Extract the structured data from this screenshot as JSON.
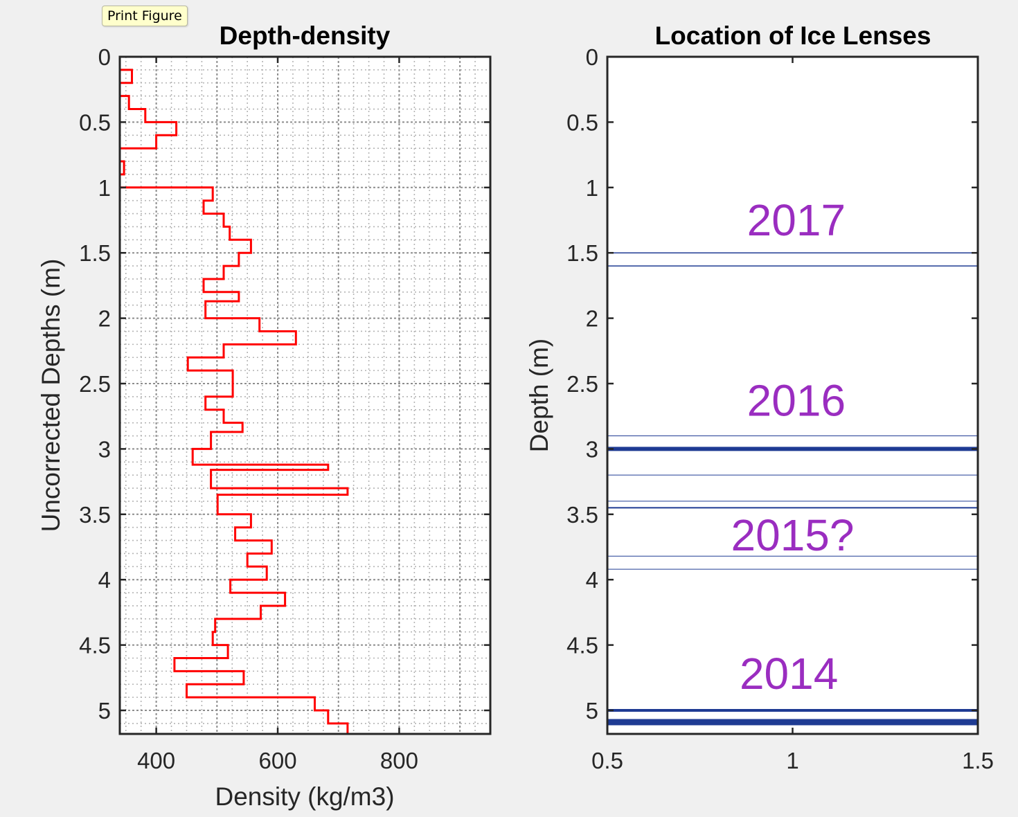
{
  "tooltip": "Print Figure",
  "chart_data": [
    {
      "type": "line",
      "title": "Depth-density",
      "xlabel": "Density (kg/m3)",
      "ylabel": "Uncorrected Depths (m)",
      "xlim": [
        340,
        950
      ],
      "ylim": [
        5.18,
        0
      ],
      "xticks": [
        "400",
        "600",
        "800"
      ],
      "xtick_values": [
        400,
        600,
        800
      ],
      "yticks": [
        "0",
        "0.5",
        "1",
        "1.5",
        "2",
        "2.5",
        "3",
        "3.5",
        "4",
        "4.5",
        "5"
      ],
      "ytick_values": [
        0,
        0.5,
        1,
        1.5,
        2,
        2.5,
        3,
        3.5,
        4,
        4.5,
        5
      ],
      "grid": true,
      "minor_grid": true,
      "color": "#ff0000",
      "style": "stairs",
      "series": [
        {
          "points": [
            [
              340,
              0.1
            ],
            [
              360,
              0.1
            ],
            [
              360,
              0.2
            ],
            [
              340,
              0.2
            ],
            [
              340,
              0.3
            ],
            [
              355,
              0.3
            ],
            [
              355,
              0.4
            ],
            [
              382,
              0.4
            ],
            [
              382,
              0.5
            ],
            [
              433,
              0.5
            ],
            [
              433,
              0.6
            ],
            [
              400,
              0.6
            ],
            [
              400,
              0.7
            ],
            [
              340,
              0.7
            ],
            [
              340,
              0.8
            ],
            [
              347,
              0.8
            ],
            [
              347,
              0.9
            ],
            [
              340,
              0.9
            ],
            [
              340,
              1.0
            ],
            [
              493,
              1.0
            ],
            [
              493,
              1.1
            ],
            [
              478,
              1.1
            ],
            [
              478,
              1.2
            ],
            [
              511,
              1.2
            ],
            [
              511,
              1.3
            ],
            [
              521,
              1.3
            ],
            [
              521,
              1.4
            ],
            [
              556,
              1.4
            ],
            [
              556,
              1.5
            ],
            [
              536,
              1.5
            ],
            [
              536,
              1.6
            ],
            [
              511,
              1.6
            ],
            [
              511,
              1.7
            ],
            [
              478,
              1.7
            ],
            [
              478,
              1.8
            ],
            [
              536,
              1.8
            ],
            [
              536,
              1.87
            ],
            [
              481,
              1.87
            ],
            [
              481,
              2.0
            ],
            [
              570,
              2.0
            ],
            [
              570,
              2.1
            ],
            [
              630,
              2.1
            ],
            [
              630,
              2.2
            ],
            [
              511,
              2.2
            ],
            [
              511,
              2.3
            ],
            [
              452,
              2.3
            ],
            [
              452,
              2.4
            ],
            [
              526,
              2.4
            ],
            [
              526,
              2.6
            ],
            [
              481,
              2.6
            ],
            [
              481,
              2.7
            ],
            [
              511,
              2.7
            ],
            [
              511,
              2.8
            ],
            [
              542,
              2.8
            ],
            [
              542,
              2.87
            ],
            [
              490,
              2.87
            ],
            [
              490,
              3.0
            ],
            [
              460,
              3.0
            ],
            [
              460,
              3.12
            ],
            [
              683,
              3.12
            ],
            [
              683,
              3.16
            ],
            [
              490,
              3.16
            ],
            [
              490,
              3.3
            ],
            [
              715,
              3.3
            ],
            [
              715,
              3.35
            ],
            [
              501,
              3.35
            ],
            [
              501,
              3.5
            ],
            [
              556,
              3.5
            ],
            [
              556,
              3.6
            ],
            [
              530,
              3.6
            ],
            [
              530,
              3.7
            ],
            [
              590,
              3.7
            ],
            [
              590,
              3.8
            ],
            [
              550,
              3.8
            ],
            [
              550,
              3.9
            ],
            [
              582,
              3.9
            ],
            [
              582,
              4.0
            ],
            [
              522,
              4.0
            ],
            [
              522,
              4.1
            ],
            [
              612,
              4.1
            ],
            [
              612,
              4.2
            ],
            [
              572,
              4.2
            ],
            [
              572,
              4.3
            ],
            [
              497,
              4.3
            ],
            [
              497,
              4.4
            ],
            [
              493,
              4.4
            ],
            [
              493,
              4.5
            ],
            [
              518,
              4.5
            ],
            [
              518,
              4.6
            ],
            [
              430,
              4.6
            ],
            [
              430,
              4.7
            ],
            [
              544,
              4.7
            ],
            [
              544,
              4.8
            ],
            [
              450,
              4.8
            ],
            [
              450,
              4.9
            ],
            [
              661,
              4.9
            ],
            [
              661,
              5.0
            ],
            [
              683,
              5.0
            ],
            [
              683,
              5.1
            ],
            [
              715,
              5.1
            ],
            [
              715,
              5.18
            ]
          ]
        }
      ]
    },
    {
      "type": "line",
      "title": "Location of Ice Lenses",
      "xlabel": "",
      "ylabel": "Depth (m)",
      "xlim": [
        0.5,
        1.5
      ],
      "ylim": [
        5.18,
        0
      ],
      "xticks": [
        "0.5",
        "1",
        "1.5"
      ],
      "xtick_values": [
        0.5,
        1,
        1.5
      ],
      "yticks": [
        "0",
        "0.5",
        "1",
        "1.5",
        "2",
        "2.5",
        "3",
        "3.5",
        "4",
        "4.5",
        "5"
      ],
      "ytick_values": [
        0,
        0.5,
        1,
        1.5,
        2,
        2.5,
        3,
        3.5,
        4,
        4.5,
        5
      ],
      "grid": false,
      "color": "#1f3b93",
      "lenses": [
        {
          "depth": 1.5,
          "thickness": 1.5
        },
        {
          "depth": 1.6,
          "thickness": 1.5
        },
        {
          "depth": 2.9,
          "thickness": 1
        },
        {
          "depth": 3.0,
          "thickness": 6
        },
        {
          "depth": 3.2,
          "thickness": 1
        },
        {
          "depth": 3.4,
          "thickness": 1
        },
        {
          "depth": 3.45,
          "thickness": 2
        },
        {
          "depth": 3.82,
          "thickness": 1
        },
        {
          "depth": 3.92,
          "thickness": 1
        },
        {
          "depth": 5.0,
          "thickness": 4
        },
        {
          "depth": 5.09,
          "thickness": 9
        }
      ],
      "annotations": [
        {
          "text": "2017",
          "x": 1.01,
          "y": 1.25
        },
        {
          "text": "2016",
          "x": 1.01,
          "y": 2.63
        },
        {
          "text": "2015?",
          "x": 1.0,
          "y": 3.66
        },
        {
          "text": "2014",
          "x": 0.99,
          "y": 4.72
        }
      ]
    }
  ]
}
